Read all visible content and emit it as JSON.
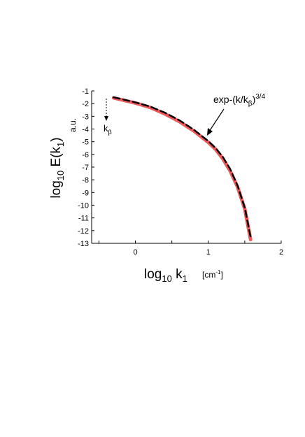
{
  "chart_data": {
    "type": "line",
    "xlim": [
      -0.6,
      2
    ],
    "ylim": [
      -13,
      -1
    ],
    "x_ticks": [
      0,
      1,
      2
    ],
    "y_ticks": [
      -1,
      -2,
      -3,
      -4,
      -5,
      -6,
      -7,
      -8,
      -9,
      -10,
      -11,
      -12,
      -13
    ],
    "x_tick_labels": [
      "0",
      "1",
      "2"
    ],
    "y_tick_labels": [
      "-1",
      "-2",
      "-3",
      "-4",
      "-5",
      "-6",
      "-7",
      "-8",
      "-9",
      "-10",
      "-11",
      "-12",
      "-13"
    ],
    "xlabel": {
      "main": "log",
      "main_sub": "10",
      "var": " k",
      "var_sub": "1",
      "unit": "[cm",
      "unit_sup": "-1",
      "unit_end": "]"
    },
    "ylabel": {
      "main": "log",
      "main_sub": "10",
      "var": " E(k",
      "var_sub": "1",
      "var_end": ")",
      "unit": "a.u."
    },
    "series": [
      {
        "style": "solid",
        "color": "#f05a5a",
        "x": [
          -0.3,
          -0.2,
          0.0,
          0.2,
          0.4,
          0.6,
          0.8,
          1.0,
          1.1,
          1.2,
          1.3,
          1.4,
          1.5,
          1.58
        ],
        "y": [
          -1.55,
          -1.68,
          -1.95,
          -2.3,
          -2.8,
          -3.4,
          -4.15,
          -5.05,
          -5.6,
          -6.35,
          -7.3,
          -8.55,
          -10.3,
          -12.7
        ]
      },
      {
        "style": "dashed",
        "color": "#000000",
        "x": [
          -0.3,
          -0.2,
          0.0,
          0.2,
          0.4,
          0.6,
          0.8,
          1.0,
          1.1,
          1.2,
          1.3,
          1.4,
          1.5,
          1.58
        ],
        "y": [
          -1.5,
          -1.63,
          -1.9,
          -2.23,
          -2.7,
          -3.3,
          -4.05,
          -4.95,
          -5.5,
          -6.2,
          -7.15,
          -8.45,
          -10.2,
          -12.5
        ]
      }
    ],
    "annotations": {
      "formula": {
        "text": "exp-(k/k",
        "sub": "β",
        "close": ")",
        "sup": "3/4"
      },
      "kbeta": {
        "text": "k",
        "sub": "β"
      }
    }
  }
}
